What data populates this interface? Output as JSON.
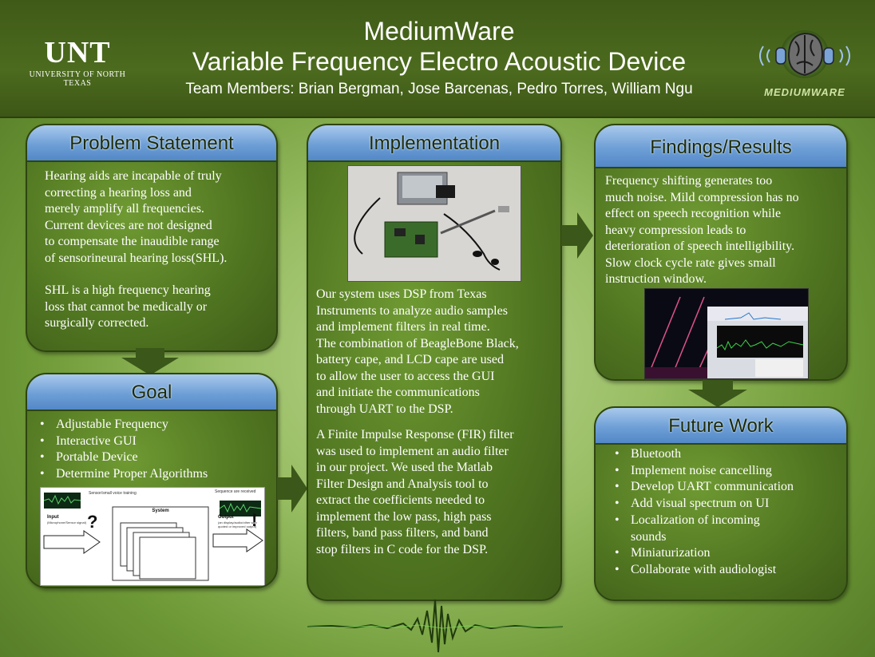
{
  "header": {
    "logo_main": "UNT",
    "logo_sub": "UNIVERSITY OF NORTH TEXAS",
    "title_line1": "MediumWare",
    "title_line2": "Variable Frequency Electro Acoustic Device",
    "team_line": "Team Members: Brian Bergman, Jose Barcenas, Pedro Torres, William Ngu",
    "brand_logo_text": "MEDIUMWARE"
  },
  "problem": {
    "heading": "Problem Statement",
    "para1_lines": [
      "Hearing aids are incapable of truly",
      "correcting a hearing loss and",
      "merely amplify all frequencies.",
      "Current devices are not designed",
      "to compensate the inaudible range",
      "of sensorineural hearing loss(SHL)."
    ],
    "para2_lines": [
      "SHL is a high frequency hearing",
      "loss that cannot be medically or",
      "surgically corrected."
    ]
  },
  "goal": {
    "heading": "Goal",
    "items": [
      "Adjustable Frequency",
      "Interactive GUI",
      "Portable Device",
      "Determine Proper Algorithms"
    ],
    "diagram": {
      "top_note": "Sensor/small voice training",
      "right_note": "Sequence are received",
      "input_label": "Input",
      "input_sub": "(Microphone/Sensor signal)",
      "system_label": "System",
      "output_label": "Output",
      "output_sub": "(an display/audio/other with quoted or improved output)",
      "q_mark": "?",
      "ex_mark": "!"
    }
  },
  "implementation": {
    "heading": "Implementation",
    "para1_lines": [
      "Our system uses DSP from Texas",
      "Instruments to analyze audio samples",
      "and implement filters in real time.",
      "The combination of BeagleBone Black,",
      "battery cape, and LCD cape are used",
      "to allow the user to access the GUI",
      "and initiate the communications",
      "through UART to the DSP."
    ],
    "para2_lines": [
      "A Finite Impulse Response (FIR) filter",
      "was used to implement an audio filter",
      "in our project. We used the Matlab",
      "Filter Design and Analysis tool to",
      "extract the coefficients needed to",
      "implement the low pass, high pass",
      "filters, band pass filters, and band",
      "stop filters in C code for the DSP."
    ]
  },
  "findings": {
    "heading": "Findings/Results",
    "lines": [
      "Frequency shifting generates too",
      "much noise. Mild compression has no",
      "effect on speech recognition while",
      "heavy compression leads to",
      "deterioration of speech intelligibility.",
      "Slow clock cycle rate gives small",
      "instruction window."
    ]
  },
  "future": {
    "heading": "Future Work",
    "items": [
      "Bluetooth",
      "Implement noise cancelling",
      "Develop UART communication",
      "Add visual spectrum on UI",
      "Localization of incoming sounds",
      "Miniaturization",
      "Collaborate with audiologist"
    ]
  },
  "colors": {
    "panel_head": "#6e9fd6",
    "panel_body": "#4f7420",
    "header_bg": "#4c6b1e",
    "arrow": "#3b5719"
  },
  "icons": [
    "unt-logo",
    "brain-headphones-logo",
    "arrow-down-icon",
    "arrow-right-icon",
    "sound-wave-icon"
  ]
}
